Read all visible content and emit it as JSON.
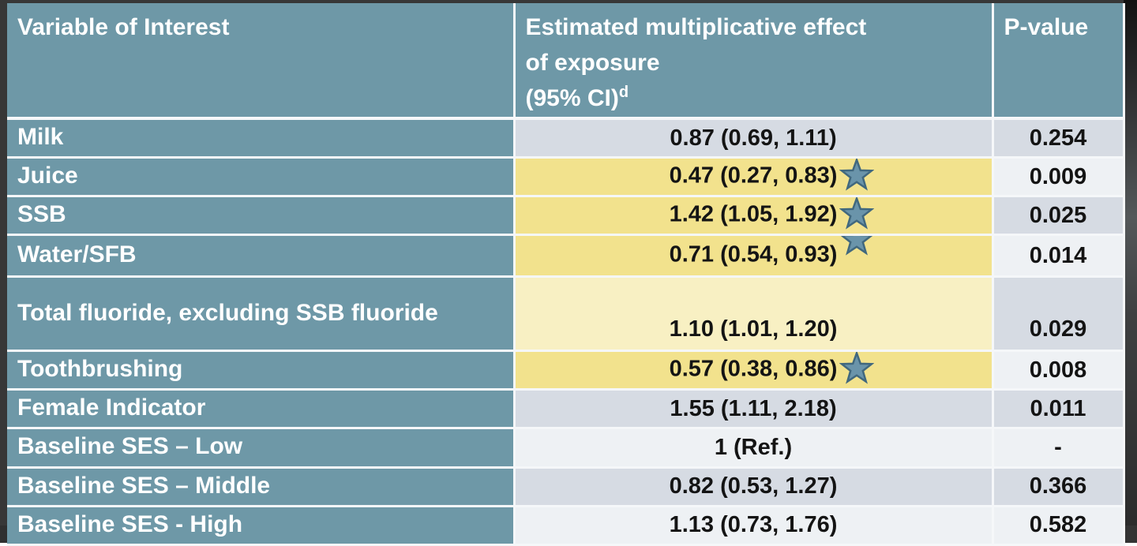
{
  "table": {
    "header": {
      "variable": "Variable of Interest",
      "estimate_line1": "Estimated multiplicative effect",
      "estimate_line2": "of exposure",
      "estimate_line3": "(95% CI)",
      "estimate_footnote_marker": "d",
      "p_value": "P-value"
    },
    "rows": [
      {
        "label": "Milk",
        "estimate": "0.87 (0.69, 1.11)",
        "p_value": "0.254",
        "significant_star": false,
        "star_raised": false,
        "highlight": "none"
      },
      {
        "label": "Juice",
        "estimate": "0.47 (0.27, 0.83)",
        "p_value": "0.009",
        "significant_star": true,
        "star_raised": false,
        "highlight": "strong"
      },
      {
        "label": "SSB",
        "estimate": "1.42 (1.05, 1.92)",
        "p_value": "0.025",
        "significant_star": true,
        "star_raised": false,
        "highlight": "strong"
      },
      {
        "label": "Water/SFB",
        "estimate": "0.71 (0.54, 0.93)",
        "p_value": "0.014",
        "significant_star": true,
        "star_raised": true,
        "highlight": "strong"
      },
      {
        "label": "Total fluoride, excluding SSB fluoride",
        "estimate": "1.10 (1.01, 1.20)",
        "p_value": "0.029",
        "significant_star": false,
        "star_raised": false,
        "highlight": "pale",
        "valign": "bottom"
      },
      {
        "label": "Toothbrushing",
        "estimate": "0.57 (0.38, 0.86)",
        "p_value": "0.008",
        "significant_star": true,
        "star_raised": false,
        "highlight": "strong"
      },
      {
        "label": "Female Indicator",
        "estimate": "1.55 (1.11, 2.18)",
        "p_value": "0.011",
        "significant_star": false,
        "star_raised": false,
        "highlight": "none"
      },
      {
        "label": "Baseline SES – Low",
        "estimate": "1 (Ref.)",
        "p_value": "-",
        "significant_star": false,
        "star_raised": false,
        "highlight": "none"
      },
      {
        "label": "Baseline SES – Middle",
        "estimate": "0.82 (0.53, 1.27)",
        "p_value": "0.366",
        "significant_star": false,
        "star_raised": false,
        "highlight": "none"
      },
      {
        "label": "Baseline SES - High",
        "estimate": "1.13 (0.73, 1.76)",
        "p_value": "0.582",
        "significant_star": false,
        "star_raised": false,
        "highlight": "none"
      }
    ]
  },
  "icons": {
    "significance_star": "star-icon"
  },
  "colors": {
    "header_teal": "#6e98a7",
    "band_dark": "#d6dbe3",
    "band_light": "#eef1f4",
    "highlight_strong": "#f2e28d",
    "highlight_pale": "#f8f0c3",
    "separator_white": "#f5f7f9",
    "text_dark": "#141414",
    "text_white": "#ffffff",
    "star_fill": "#6a94aa",
    "star_stroke": "#41687e"
  },
  "chart_data": {
    "type": "table",
    "title": "",
    "columns": [
      "Variable of Interest",
      "Estimated multiplicative effect of exposure (95% CI)d",
      "P-value"
    ],
    "rows": [
      [
        "Milk",
        "0.87 (0.69, 1.11)",
        "0.254"
      ],
      [
        "Juice",
        "0.47 (0.27, 0.83)",
        "0.009"
      ],
      [
        "SSB",
        "1.42 (1.05, 1.92)",
        "0.025"
      ],
      [
        "Water/SFB",
        "0.71 (0.54, 0.93)",
        "0.014"
      ],
      [
        "Total fluoride, excluding SSB fluoride",
        "1.10 (1.01, 1.20)",
        "0.029"
      ],
      [
        "Toothbrushing",
        "0.57 (0.38, 0.86)",
        "0.008"
      ],
      [
        "Female Indicator",
        "1.55 (1.11, 2.18)",
        "0.011"
      ],
      [
        "Baseline SES – Low",
        "1 (Ref.)",
        "-"
      ],
      [
        "Baseline SES – Middle",
        "0.82 (0.53, 1.27)",
        "0.366"
      ],
      [
        "Baseline SES - High",
        "1.13 (0.73, 1.76)",
        "0.582"
      ]
    ],
    "highlighted_rows": [
      "Juice",
      "SSB",
      "Water/SFB",
      "Total fluoride, excluding SSB fluoride",
      "Toothbrushing"
    ],
    "starred_rows": [
      "Juice",
      "SSB",
      "Water/SFB",
      "Toothbrushing"
    ],
    "estimates": [
      0.87,
      0.47,
      1.42,
      0.71,
      1.1,
      0.57,
      1.55,
      1.0,
      0.82,
      1.13
    ],
    "ci_low": [
      0.69,
      0.27,
      1.05,
      0.54,
      1.01,
      0.38,
      1.11,
      null,
      0.53,
      0.73
    ],
    "ci_high": [
      1.11,
      0.83,
      1.92,
      0.93,
      1.2,
      0.86,
      2.18,
      null,
      1.27,
      1.76
    ],
    "p_values": [
      0.254,
      0.009,
      0.025,
      0.014,
      0.029,
      0.008,
      0.011,
      null,
      0.366,
      0.582
    ]
  }
}
